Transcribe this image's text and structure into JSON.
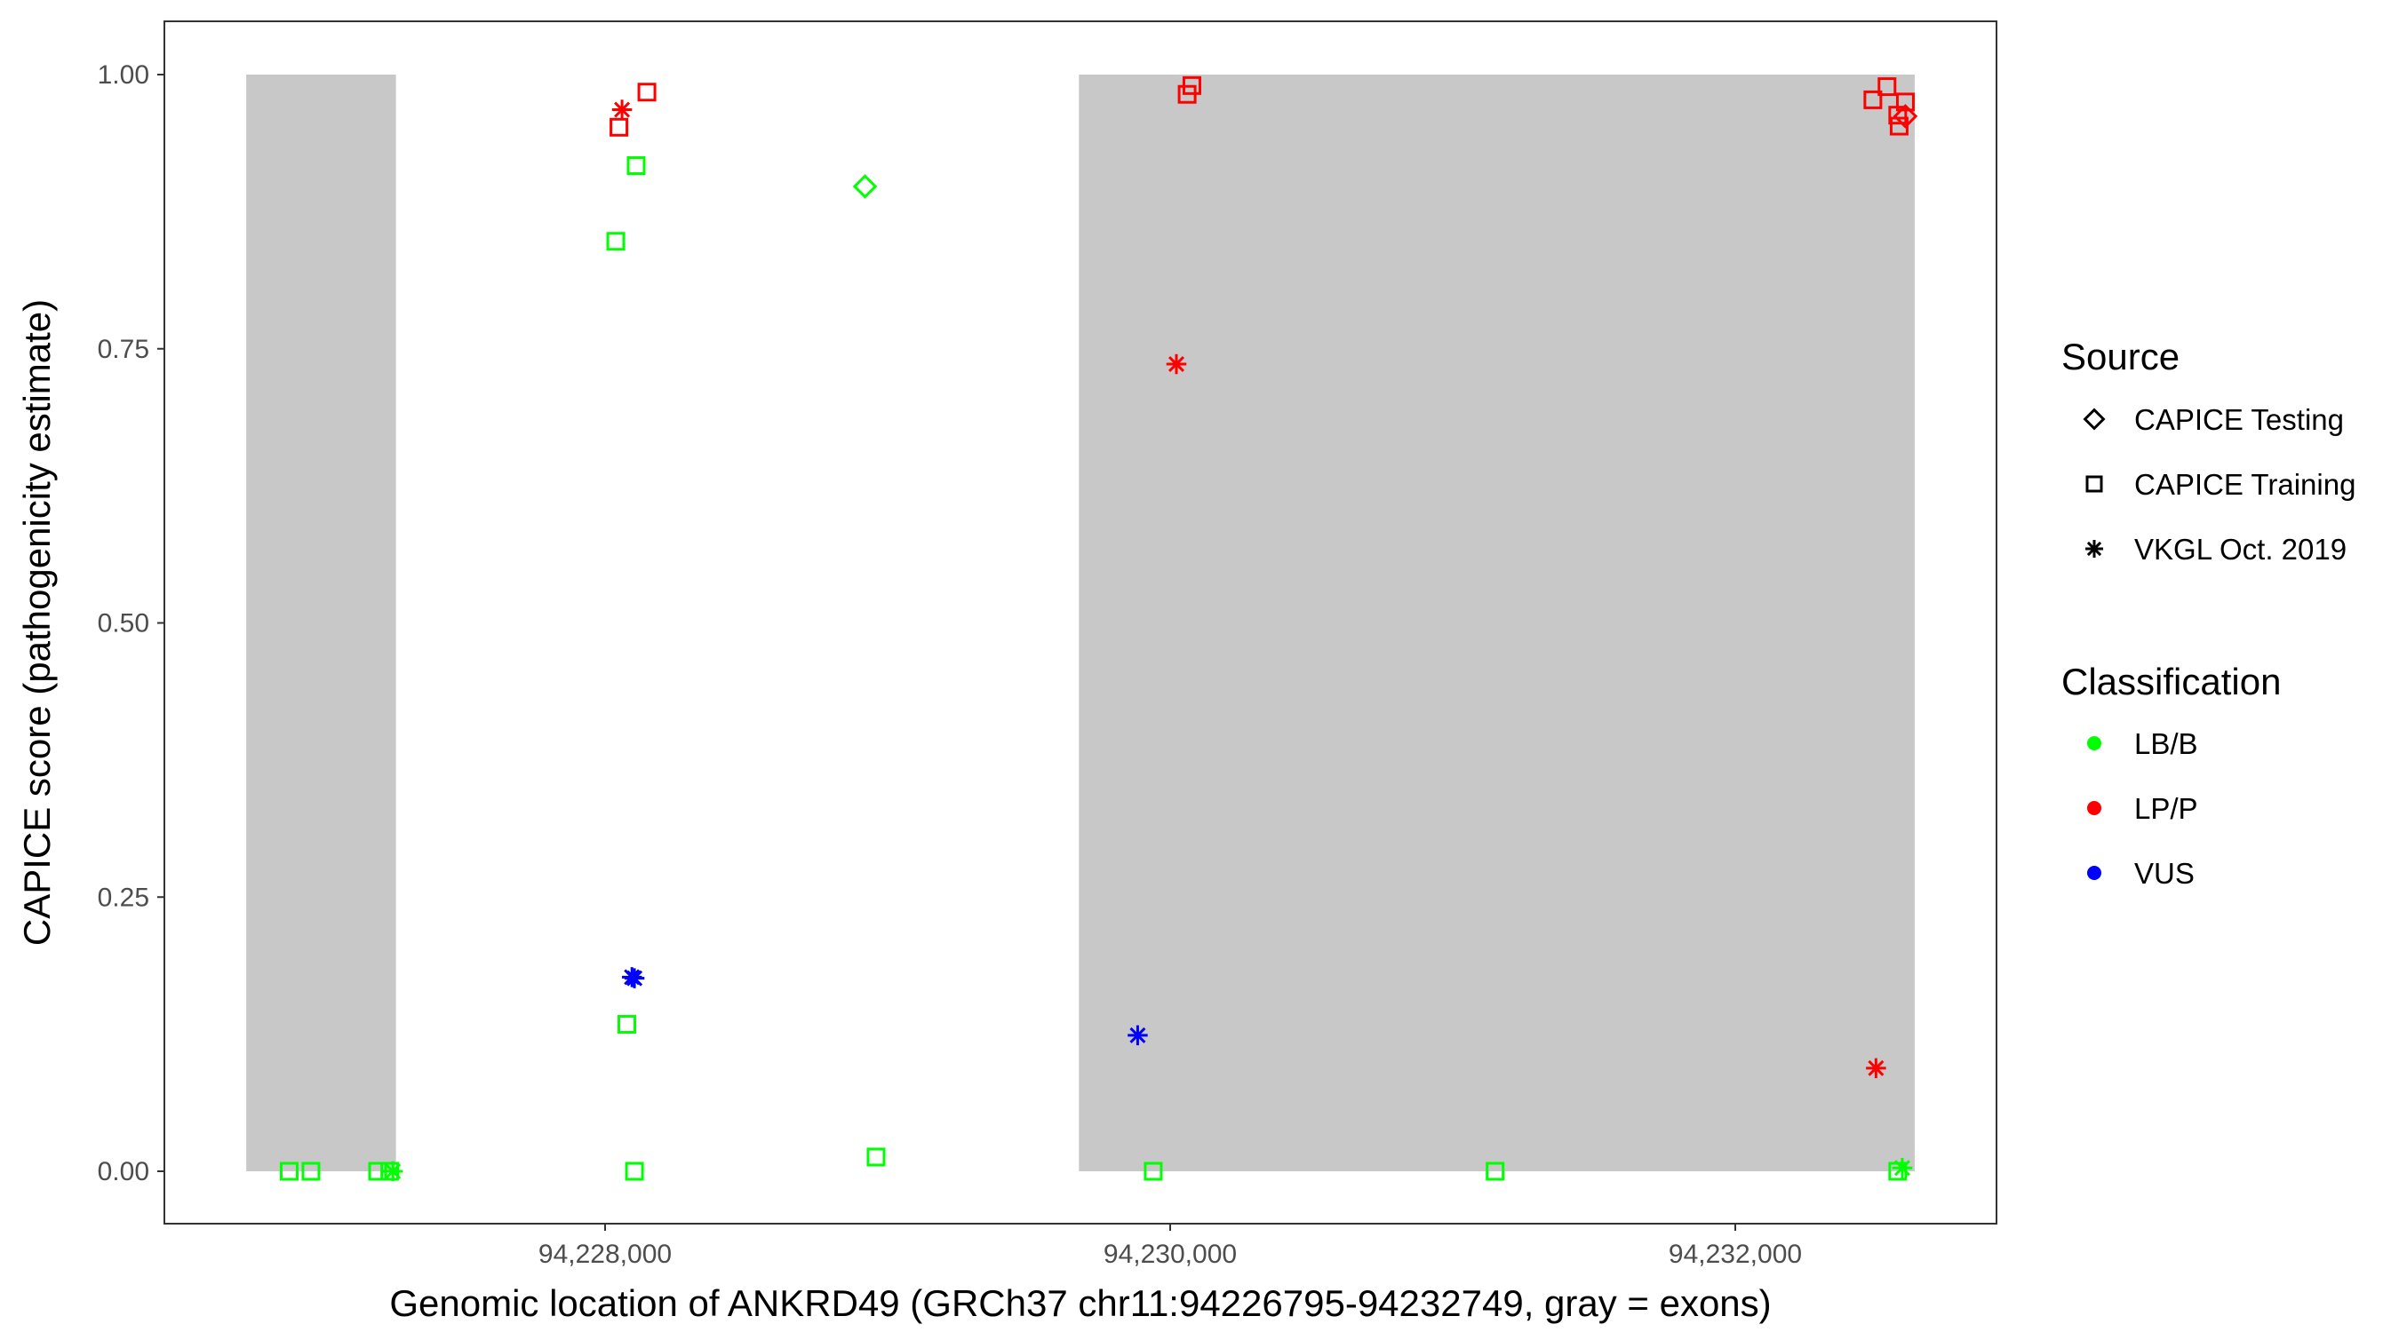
{
  "chart_data": {
    "type": "scatter",
    "xlabel": "Genomic location of ANKRD49 (GRCh37 chr11:94226795-94232749, gray = exons)",
    "ylabel": "CAPICE score (pathogenicity estimate)",
    "xlim": [
      94226430,
      94233050
    ],
    "ylim": [
      -0.047,
      1.047
    ],
    "x_ticks": [
      94228000,
      94230000,
      94232000
    ],
    "x_tick_labels": [
      "94,228,000",
      "94,230,000",
      "94,232,000"
    ],
    "y_ticks": [
      0,
      0.25,
      0.5,
      0.75,
      1.0
    ],
    "y_tick_labels": [
      "0.00",
      "0.25",
      "0.50",
      "0.75",
      "1.00"
    ],
    "grid": false,
    "exons": [
      [
        94226730,
        94227260
      ],
      [
        94229677,
        94232635
      ]
    ],
    "exon_color": "#c8c8c8",
    "legend": {
      "placement": "right",
      "source_title": "Source",
      "source_items": [
        {
          "label": "CAPICE Testing",
          "shape": "diamond"
        },
        {
          "label": "CAPICE Training",
          "shape": "square"
        },
        {
          "label": "VKGL Oct. 2019",
          "shape": "asterisk"
        }
      ],
      "classification_title": "Classification",
      "classification_items": [
        {
          "label": "LB/B",
          "color": "#00ff00"
        },
        {
          "label": "LP/P",
          "color": "#ff0000"
        },
        {
          "label": "VUS",
          "color": "#0000ff"
        }
      ]
    },
    "points": [
      {
        "x": 94226882,
        "y": 0,
        "source": "CAPICE Training",
        "class": "LB/B"
      },
      {
        "x": 94226959,
        "y": 0,
        "source": "CAPICE Training",
        "class": "LB/B"
      },
      {
        "x": 94227195,
        "y": 0,
        "source": "CAPICE Training",
        "class": "LB/B"
      },
      {
        "x": 94227238,
        "y": 0,
        "source": "CAPICE Training",
        "class": "LB/B"
      },
      {
        "x": 94228038,
        "y": 0.848,
        "source": "CAPICE Training",
        "class": "LB/B"
      },
      {
        "x": 94228110,
        "y": 0.917,
        "source": "CAPICE Training",
        "class": "LB/B"
      },
      {
        "x": 94228077,
        "y": 0.134,
        "source": "CAPICE Training",
        "class": "LB/B"
      },
      {
        "x": 94228104,
        "y": 0,
        "source": "CAPICE Training",
        "class": "LB/B"
      },
      {
        "x": 94228959,
        "y": 0.013,
        "source": "CAPICE Training",
        "class": "LB/B"
      },
      {
        "x": 94229940,
        "y": 0,
        "source": "CAPICE Training",
        "class": "LB/B"
      },
      {
        "x": 94231150,
        "y": 0,
        "source": "CAPICE Training",
        "class": "LB/B"
      },
      {
        "x": 94232575,
        "y": 0,
        "source": "CAPICE Training",
        "class": "LB/B"
      },
      {
        "x": 94228920,
        "y": 0.898,
        "source": "CAPICE Testing",
        "class": "LB/B"
      },
      {
        "x": 94227249,
        "y": 0,
        "source": "VKGL Oct. 2019",
        "class": "LB/B"
      },
      {
        "x": 94232591,
        "y": 0.003,
        "source": "VKGL Oct. 2019",
        "class": "LB/B"
      },
      {
        "x": 94228049,
        "y": 0.952,
        "source": "CAPICE Training",
        "class": "LP/P"
      },
      {
        "x": 94228148,
        "y": 0.984,
        "source": "CAPICE Training",
        "class": "LP/P"
      },
      {
        "x": 94230060,
        "y": 0.982,
        "source": "CAPICE Training",
        "class": "LP/P"
      },
      {
        "x": 94230077,
        "y": 0.99,
        "source": "CAPICE Training",
        "class": "LP/P"
      },
      {
        "x": 94232487,
        "y": 0.977,
        "source": "CAPICE Training",
        "class": "LP/P"
      },
      {
        "x": 94232537,
        "y": 0.989,
        "source": "CAPICE Training",
        "class": "LP/P"
      },
      {
        "x": 94232602,
        "y": 0.975,
        "source": "CAPICE Training",
        "class": "LP/P"
      },
      {
        "x": 94232580,
        "y": 0.953,
        "source": "CAPICE Training",
        "class": "LP/P"
      },
      {
        "x": 94232575,
        "y": 0.963,
        "source": "CAPICE Training",
        "class": "LP/P"
      },
      {
        "x": 94232602,
        "y": 0.962,
        "source": "CAPICE Testing",
        "class": "LP/P"
      },
      {
        "x": 94228060,
        "y": 0.968,
        "source": "VKGL Oct. 2019",
        "class": "LP/P"
      },
      {
        "x": 94230022,
        "y": 0.736,
        "source": "VKGL Oct. 2019",
        "class": "LP/P"
      },
      {
        "x": 94232498,
        "y": 0.094,
        "source": "VKGL Oct. 2019",
        "class": "LP/P"
      },
      {
        "x": 94228104,
        "y": 0.176,
        "source": "VKGL Oct. 2019",
        "class": "VUS"
      },
      {
        "x": 94228095,
        "y": 0.177,
        "source": "VKGL Oct. 2019",
        "class": "VUS"
      },
      {
        "x": 94229885,
        "y": 0.124,
        "source": "VKGL Oct. 2019",
        "class": "VUS"
      }
    ]
  }
}
